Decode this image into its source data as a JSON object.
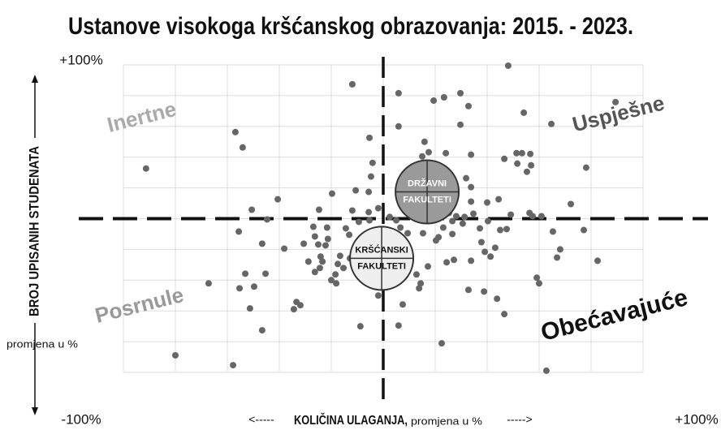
{
  "chart_data": {
    "type": "scatter",
    "title": "Ustanove visokoga kršćanskog obrazovanja: 2015. - 2023.",
    "xlabel": "KOLIČINA ULAGANJA,",
    "xlabel_sub": "promjena u %",
    "xlabel_arrows": [
      "<-----",
      "----->"
    ],
    "ylabel": "BROJ UPISANIH STUDENATA",
    "ylabel_sub": "promjena u %",
    "xlim": [
      -100,
      100
    ],
    "ylim": [
      -100,
      100
    ],
    "xticks": [
      {
        "value": 100,
        "label": "+100%"
      }
    ],
    "yticks": [
      {
        "value": -100,
        "label": "-100%"
      },
      {
        "value": 100,
        "label": "+100%"
      }
    ],
    "grid": true,
    "xgrid": [
      -100,
      -80,
      -60,
      -40,
      -20,
      0,
      20,
      40,
      60,
      80,
      100
    ],
    "ygrid": [
      -100,
      -80,
      -60,
      -40,
      -20,
      0,
      20,
      40,
      60,
      80,
      100
    ],
    "quadrant_labels": [
      {
        "text": "Inertne",
        "color": "#aaaaaa"
      },
      {
        "text": "Uspješne",
        "color": "#555555"
      },
      {
        "text": "Posrnule",
        "color": "#999999"
      },
      {
        "text": "Obećavajuće",
        "color": "#111111"
      }
    ],
    "series": [
      {
        "color": "#666666",
        "x": [
          -91.3,
          -56.9,
          -54.1,
          -11.9,
          5.9,
          23.4,
          19.4,
          29.7,
          32.8,
          48.1,
          54.1,
          64.7,
          89.4,
          29.7,
          5.9,
          -5.3,
          -4.1,
          -4.7,
          -5.6,
          15.9,
          15.0,
          17.5,
          24.1,
          46.6,
          51.3,
          51.6,
          53.4,
          56.6,
          56.9,
          55.3,
          78.1,
          33.8,
          31.9,
          33.8,
          26.9,
          33.8,
          22.8,
          40.0,
          44.4,
          72.2,
          -19.7,
          -10.6,
          -40.6,
          -50.6,
          -44.7,
          -24.7,
          -11.9,
          -1.9,
          56.3,
          57.5,
          60.9,
          47.5,
          45.0,
          34.7,
          31.3,
          26.6,
          23.1,
          21.3,
          26.6,
          20.3,
          37.2,
          40.3,
          49.1,
          65.3,
          77.2,
          37.8,
          39.1,
          43.1,
          41.3,
          68.1,
          66.9,
          82.5,
          27.2,
          24.4,
          33.8,
          17.2,
          12.8,
          14.4,
          13.8,
          7.2,
          7.5,
          5.9,
          22.5,
          32.8,
          38.8,
          43.8,
          46.6,
          59.1,
          60.0,
          62.8,
          -55.6,
          -46.6,
          -53.1,
          -45.3,
          -49.7,
          -55.3,
          -67.2,
          -33.4,
          -31.9,
          -34.4,
          -51.3,
          -46.6,
          -38.1,
          -26.9,
          -26.3,
          -21.6,
          -21.3,
          -22.2,
          -24.1,
          -23.4,
          -24.4,
          -26.3,
          -20.0,
          -18.1,
          -15.3,
          -11.6,
          -13.1,
          -14.4,
          -9.4,
          -5.3,
          -5.9,
          -10.0,
          -16.6,
          -17.5,
          -18.4,
          -7.8,
          -8.8,
          -1.9,
          -5.6,
          2.5,
          5.0,
          6.6,
          9.4,
          15.3,
          -80.0,
          -57.8,
          23.8,
          25.3,
          28.1,
          30.6,
          1.9,
          4.4,
          -12.8,
          -30.6,
          -28.8,
          -25.0
        ],
        "values": [
          32.6,
          56.3,
          46.3,
          87.4,
          81.6,
          78.9,
          76.8,
          81.6,
          73.2,
          99.5,
          68.9,
          61.6,
          75.8,
          61.1,
          60.0,
          52.6,
          36.3,
          27.4,
          17.4,
          50.0,
          40.5,
          43.2,
          42.6,
          38.9,
          42.6,
          35.8,
          42.6,
          42.1,
          34.7,
          30.5,
          33.2,
          41.6,
          26.3,
          20.5,
          23.7,
          11.1,
          12.6,
          10.5,
          12.6,
          9.5,
          16.3,
          18.4,
          12.6,
          5.8,
          -0.5,
          5.8,
          5.3,
          6.8,
          3.7,
          1.6,
          1.6,
          -6.8,
          -7.4,
          3.2,
          1.1,
          -1.6,
          -5.8,
          -12.1,
          -10.0,
          -14.2,
          -6.3,
          -1.6,
          2.6,
          -8.4,
          -7.4,
          -15.3,
          -21.6,
          -18.9,
          -24.7,
          -20.0,
          -25.3,
          -27.4,
          -26.8,
          -28.4,
          -27.4,
          -31.1,
          -36.3,
          -42.1,
          -45.3,
          -38.4,
          -55.8,
          -69.5,
          -81.1,
          -46.3,
          -47.4,
          -52.1,
          -62.1,
          -38.4,
          -42.1,
          -98.9,
          -8.4,
          -16.3,
          -35.8,
          -35.8,
          -44.2,
          -45.3,
          -42.1,
          -54.2,
          -56.3,
          -58.9,
          -58.4,
          -72.6,
          -19.5,
          -5.3,
          -11.6,
          -5.8,
          -13.2,
          -17.4,
          -24.7,
          -27.9,
          -32.1,
          -34.7,
          -40.0,
          -42.1,
          -32.1,
          -22.6,
          -10.5,
          -6.3,
          -2.1,
          -1.1,
          -11.6,
          -17.9,
          -24.2,
          -29.5,
          -36.3,
          -36.8,
          -70.0,
          -50.0,
          4.2,
          1.1,
          -1.1,
          -5.8,
          -9.5,
          -9.5,
          -88.9,
          -95.3,
          5.8,
          3.7,
          1.6,
          -3.2,
          -32.1,
          -40.0,
          -25.8,
          -16.3,
          -27.9,
          -16.8
        ]
      }
    ],
    "highlights": [
      {
        "label": [
          "DRŽAVNI",
          "FAKULTETI"
        ],
        "x": 16.9,
        "y": 17.4,
        "color": "#9a9a9a",
        "text_color": "#ffffff"
      },
      {
        "label": [
          "KRŠĆANSKI",
          "FAKULTETI"
        ],
        "x": -0.6,
        "y": -25.8,
        "color": "#eeeeee",
        "text_color": "#111111"
      }
    ]
  }
}
